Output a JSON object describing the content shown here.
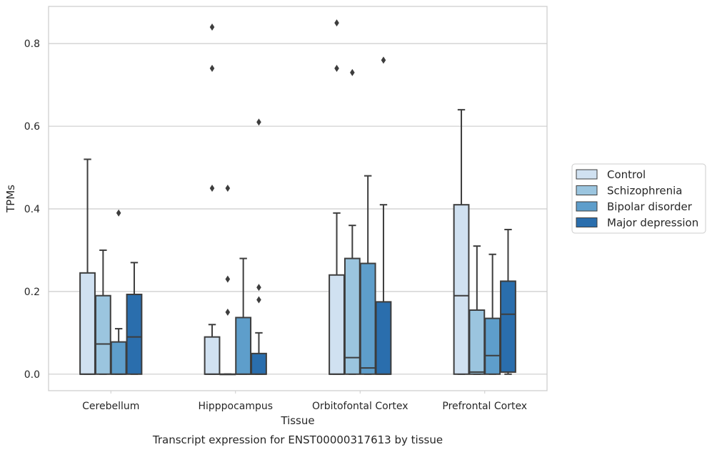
{
  "chart_data": {
    "type": "box",
    "title": "",
    "caption": "Transcript expression for ENST00000317613 by tissue",
    "xlabel": "Tissue",
    "ylabel": "TPMs",
    "ylim": [
      -0.04,
      0.89
    ],
    "yticks": [
      0.0,
      0.2,
      0.4,
      0.6,
      0.8
    ],
    "ytick_labels": [
      "0.0",
      "0.2",
      "0.4",
      "0.6",
      "0.8"
    ],
    "grid": "horizontal",
    "legend_position": "right",
    "categories": [
      "Cerebellum",
      "Hipppocampus",
      "Orbitofontal Cortex",
      "Prefrontal Cortex"
    ],
    "series": [
      {
        "name": "Control",
        "color": "#d0e1f1",
        "boxes": [
          {
            "q1": 0.0,
            "median": 0.0,
            "q3": 0.245,
            "whislo": 0.0,
            "whishi": 0.52,
            "fliers": []
          },
          {
            "q1": 0.0,
            "median": 0.0,
            "q3": 0.09,
            "whislo": 0.0,
            "whishi": 0.12,
            "fliers": [
              0.84,
              0.74,
              0.45
            ]
          },
          {
            "q1": 0.0,
            "median": 0.0,
            "q3": 0.24,
            "whislo": 0.0,
            "whishi": 0.39,
            "fliers": [
              0.85,
              0.74
            ]
          },
          {
            "q1": 0.0,
            "median": 0.19,
            "q3": 0.41,
            "whislo": 0.0,
            "whishi": 0.64,
            "fliers": []
          }
        ]
      },
      {
        "name": "Schizophrenia",
        "color": "#9bc5df",
        "boxes": [
          {
            "q1": 0.0,
            "median": 0.073,
            "q3": 0.19,
            "whislo": 0.0,
            "whishi": 0.3,
            "fliers": []
          },
          {
            "q1": 0.0,
            "median": 0.0,
            "q3": 0.0,
            "whislo": 0.0,
            "whishi": 0.0,
            "fliers": [
              0.45,
              0.23,
              0.15
            ]
          },
          {
            "q1": 0.0,
            "median": 0.04,
            "q3": 0.28,
            "whislo": 0.0,
            "whishi": 0.36,
            "fliers": [
              0.73
            ]
          },
          {
            "q1": 0.0,
            "median": 0.005,
            "q3": 0.155,
            "whislo": 0.0,
            "whishi": 0.31,
            "fliers": []
          }
        ]
      },
      {
        "name": "Bipolar disorder",
        "color": "#5e9ecb",
        "boxes": [
          {
            "q1": 0.0,
            "median": 0.0,
            "q3": 0.078,
            "whislo": 0.0,
            "whishi": 0.11,
            "fliers": [
              0.39
            ]
          },
          {
            "q1": 0.0,
            "median": 0.0,
            "q3": 0.137,
            "whislo": 0.0,
            "whishi": 0.28,
            "fliers": []
          },
          {
            "q1": 0.0,
            "median": 0.015,
            "q3": 0.268,
            "whislo": 0.0,
            "whishi": 0.48,
            "fliers": []
          },
          {
            "q1": 0.0,
            "median": 0.045,
            "q3": 0.135,
            "whislo": 0.0,
            "whishi": 0.29,
            "fliers": []
          }
        ]
      },
      {
        "name": "Major depression",
        "color": "#2a6ead",
        "boxes": [
          {
            "q1": 0.0,
            "median": 0.09,
            "q3": 0.193,
            "whislo": 0.0,
            "whishi": 0.27,
            "fliers": []
          },
          {
            "q1": 0.0,
            "median": 0.0,
            "q3": 0.05,
            "whislo": 0.0,
            "whishi": 0.1,
            "fliers": [
              0.61,
              0.21,
              0.18
            ]
          },
          {
            "q1": 0.0,
            "median": 0.0,
            "q3": 0.175,
            "whislo": 0.0,
            "whishi": 0.41,
            "fliers": [
              0.76
            ]
          },
          {
            "q1": 0.005,
            "median": 0.145,
            "q3": 0.225,
            "whislo": 0.0,
            "whishi": 0.35,
            "fliers": []
          }
        ]
      }
    ]
  }
}
